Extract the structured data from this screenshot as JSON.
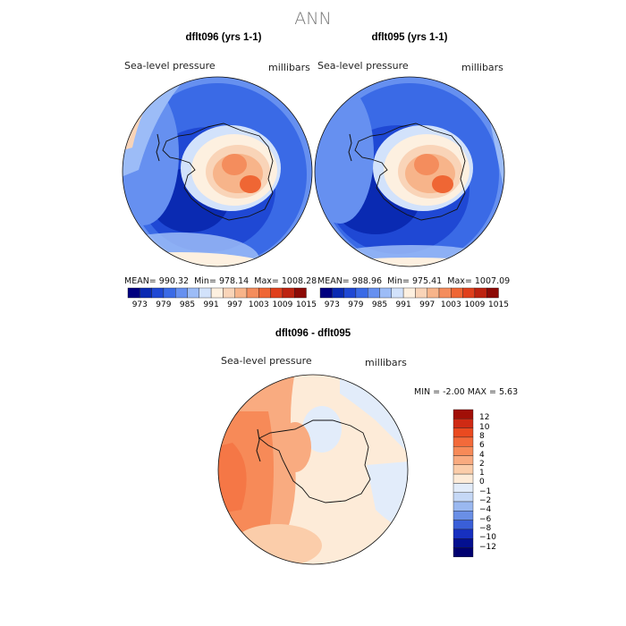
{
  "main_title": "ANN",
  "panels": [
    {
      "title": "dflt096 (yrs 1-1)",
      "variable": "Sea-level pressure",
      "units": "millibars",
      "stats": {
        "mean_label": "MEAN=",
        "mean": "990.32",
        "min_label": "Min=",
        "min": "978.14",
        "max_label": "Max=",
        "max": "1008.28"
      }
    },
    {
      "title": "dflt095 (yrs 1-1)",
      "variable": "Sea-level pressure",
      "units": "millibars",
      "stats": {
        "mean_label": "MEAN=",
        "mean": "988.96",
        "min_label": "Min=",
        "min": "975.41",
        "max_label": "Max=",
        "max": "1007.09"
      }
    }
  ],
  "colorbar": {
    "ticks": [
      "973",
      "979",
      "985",
      "991",
      "997",
      "1003",
      "1009",
      "1015"
    ],
    "colors": [
      "#00007f",
      "#0a2ab2",
      "#1f48d4",
      "#3a6ae6",
      "#6690f0",
      "#9cbcf7",
      "#d2e2fb",
      "#fdf0e0",
      "#f9d4b8",
      "#f7b48a",
      "#f48d5d",
      "#ef6634",
      "#e0401c",
      "#bd2310",
      "#8c0a06"
    ]
  },
  "diff": {
    "title": "dflt096 - dflt095",
    "variable": "Sea-level pressure",
    "units": "millibars",
    "min_label": "MIN =",
    "min": "-2.00",
    "max_label": "MAX =",
    "max": "5.63",
    "ticks": [
      "12",
      "10",
      "8",
      "6",
      "4",
      "2",
      "1",
      "0",
      "−1",
      "−2",
      "−4",
      "−6",
      "−8",
      "−10",
      "−12"
    ],
    "colors": [
      "#a10f07",
      "#cf2a14",
      "#ea4a20",
      "#f36a3a",
      "#f78a58",
      "#f9ab80",
      "#fbcdaa",
      "#fdebd8",
      "#e2ecfa",
      "#c5d8f6",
      "#9ab8f0",
      "#6a8fe6",
      "#3a5fd8",
      "#1730c0",
      "#041090",
      "#000070"
    ]
  },
  "chart_data": [
    {
      "type": "heatmap",
      "title": "dflt096 (yrs 1-1)",
      "variable": "Sea-level pressure",
      "units": "millibars",
      "projection": "south-polar stereographic",
      "mean": 990.32,
      "min": 978.14,
      "max": 1008.28,
      "levels": [
        973,
        979,
        985,
        991,
        997,
        1003,
        1009,
        1015
      ]
    },
    {
      "type": "heatmap",
      "title": "dflt095 (yrs 1-1)",
      "variable": "Sea-level pressure",
      "units": "millibars",
      "projection": "south-polar stereographic",
      "mean": 988.96,
      "min": 975.41,
      "max": 1007.09,
      "levels": [
        973,
        979,
        985,
        991,
        997,
        1003,
        1009,
        1015
      ]
    },
    {
      "type": "heatmap",
      "title": "dflt096 - dflt095",
      "variable": "Sea-level pressure",
      "units": "millibars",
      "projection": "south-polar stereographic",
      "min": -2.0,
      "max": 5.63,
      "levels": [
        -12,
        -10,
        -8,
        -6,
        -4,
        -2,
        -1,
        0,
        1,
        2,
        4,
        6,
        8,
        10,
        12
      ]
    }
  ]
}
